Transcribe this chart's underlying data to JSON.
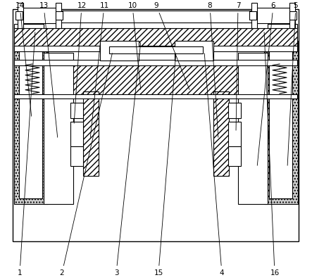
{
  "background_color": "#ffffff",
  "line_color": "#000000",
  "figsize": [
    4.43,
    3.98
  ],
  "dpi": 100,
  "label_fontsize": 7.5
}
